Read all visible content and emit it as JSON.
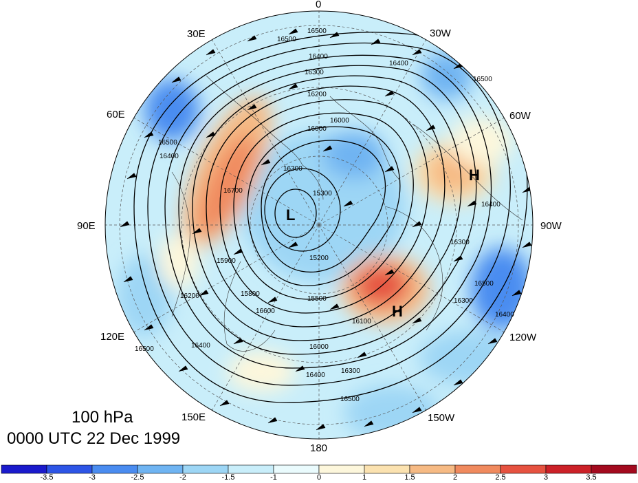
{
  "title": {
    "level": "100 hPa",
    "time": "0000 UTC 22 Dec 1999"
  },
  "longitude_labels": {
    "lon_0": "0",
    "lon_30w": "30W",
    "lon_60w": "60W",
    "lon_90w": "90W",
    "lon_120w": "120W",
    "lon_150w": "150W",
    "lon_180": "180",
    "lon_150e": "150E",
    "lon_120e": "120E",
    "lon_90e": "90E",
    "lon_60e": "60E",
    "lon_30e": "30E"
  },
  "centers": {
    "low": "L",
    "high_1": "H",
    "high_2": "H"
  },
  "contour_labels": [
    "16500",
    "16500",
    "16400",
    "16300",
    "16200",
    "16000",
    "16300",
    "16400",
    "16500",
    "16400",
    "16300",
    "16500",
    "16400",
    "16000",
    "15300",
    "15200",
    "15500",
    "16000",
    "16300",
    "16400",
    "16500",
    "16200",
    "16400",
    "16500",
    "15900",
    "16700",
    "16100",
    "15800",
    "16600",
    "16400",
    "16500",
    "16300"
  ],
  "colorbar": {
    "colors": [
      "#1a1acc",
      "#2d55e6",
      "#4a8cf0",
      "#6fb4f2",
      "#9dd6f5",
      "#c9eefa",
      "#eafbfd",
      "#fdf7dc",
      "#fbe2b0",
      "#f6ba84",
      "#f08a5e",
      "#e65240",
      "#cc2128",
      "#a30a1e"
    ],
    "tick_labels": [
      "-3.5",
      "-3",
      "-2.5",
      "-2",
      "-1.5",
      "-1",
      "0",
      "1",
      "1.5",
      "2",
      "2.5",
      "3",
      "3.5"
    ]
  }
}
